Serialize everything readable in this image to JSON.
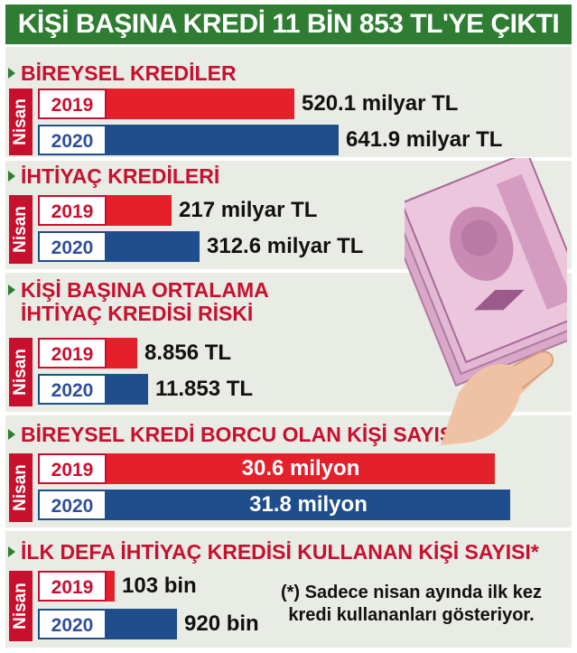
{
  "title": "KİŞİ BAŞINA KREDİ 11 BİN 853 TL'YE ÇIKTI",
  "colors": {
    "green": "#2f7d33",
    "red": "#e4202b",
    "blue": "#1f4e8c"
  },
  "nisan_label": "Nisan",
  "note": {
    "line1": "(*) Sadece nisan ayında ilk kez",
    "line2": "kredi kullananları gösteriyor."
  },
  "chart_data": [
    {
      "type": "bar",
      "title": "BİREYSEL KREDİLER",
      "categories": [
        "2019",
        "2020"
      ],
      "values": [
        520.1,
        641.9
      ],
      "unit": "milyar TL",
      "labels": [
        "520.1 milyar TL",
        "641.9 milyar TL"
      ]
    },
    {
      "type": "bar",
      "title": "İHTİYAÇ KREDİLERİ",
      "categories": [
        "2019",
        "2020"
      ],
      "values": [
        217,
        312.6
      ],
      "unit": "milyar TL",
      "labels": [
        "217 milyar TL",
        "312.6 milyar TL"
      ]
    },
    {
      "type": "bar",
      "title": "KİŞİ BAŞINA ORTALAMA",
      "title_line2": "İHTİYAÇ KREDİSİ RİSKİ",
      "categories": [
        "2019",
        "2020"
      ],
      "values": [
        8856,
        11853
      ],
      "unit": "TL",
      "labels": [
        "8.856 TL",
        "11.853 TL"
      ]
    },
    {
      "type": "bar",
      "title": "BİREYSEL KREDİ BORCU OLAN KİŞİ SAYISI",
      "categories": [
        "2019",
        "2020"
      ],
      "values": [
        30.6,
        31.8
      ],
      "unit": "milyon",
      "labels": [
        "30.6 milyon",
        "31.8 milyon"
      ]
    },
    {
      "type": "bar",
      "title": "İLK DEFA İHTİYAÇ KREDİSİ KULLANAN KİŞİ SAYISI*",
      "categories": [
        "2019",
        "2020"
      ],
      "values": [
        103,
        920
      ],
      "unit": "bin",
      "labels": [
        "103 bin",
        "920 bin"
      ]
    }
  ]
}
